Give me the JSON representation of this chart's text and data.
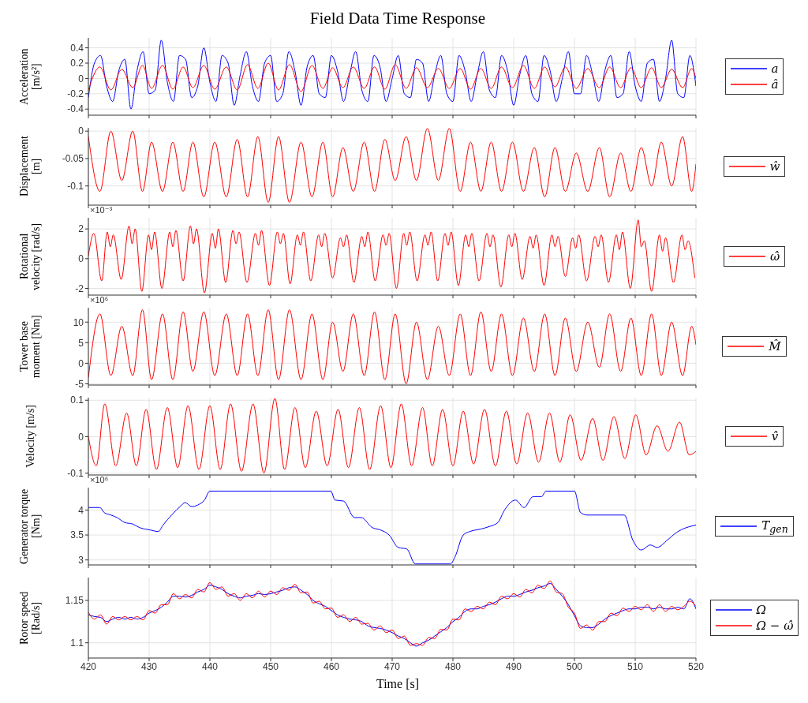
{
  "chart_data": [
    {
      "type": "line",
      "title": "Field Data Time Response",
      "ylabel": "Acceleration [m/s²]",
      "xlim": [
        420,
        520
      ],
      "xticks": [
        420,
        430,
        440,
        450,
        460,
        470,
        480,
        490,
        500,
        510,
        520
      ],
      "ylim": [
        -0.48,
        0.53
      ],
      "yticks": [
        -0.4,
        -0.2,
        0,
        0.2,
        0.4
      ],
      "grid": true,
      "legend": "right",
      "tick_labels": "y",
      "series": [
        {
          "name": "a",
          "color": "#0000ff",
          "x": [
            420,
            421,
            422,
            423,
            424,
            425,
            426,
            427,
            428,
            429,
            430,
            431,
            432,
            433,
            434,
            435,
            436,
            437,
            438,
            439,
            440,
            441,
            442,
            443,
            444,
            445,
            446,
            447,
            448,
            449,
            450,
            451,
            452,
            453,
            454,
            455,
            456,
            457,
            458,
            459,
            460,
            461,
            462,
            463,
            464,
            465,
            466,
            467,
            468,
            469,
            470,
            471,
            472,
            473,
            474,
            475,
            476,
            477,
            478,
            479,
            480,
            481,
            482,
            483,
            484,
            485,
            486,
            487,
            488,
            489,
            490,
            491,
            492,
            493,
            494,
            495,
            496,
            497,
            498,
            499,
            500,
            501,
            502,
            503,
            504,
            505,
            506,
            507,
            508,
            509,
            510,
            511,
            512,
            513,
            514,
            515,
            516,
            517,
            518,
            519,
            520
          ],
          "values": [
            -0.25,
            0.2,
            0.3,
            -0.1,
            -0.3,
            0.1,
            0.25,
            -0.4,
            0.1,
            0.35,
            -0.2,
            -0.15,
            0.5,
            -0.05,
            -0.3,
            0.3,
            0.25,
            -0.25,
            -0.1,
            0.4,
            -0.05,
            -0.3,
            0.3,
            0.2,
            -0.35,
            0.05,
            0.35,
            -0.1,
            -0.3,
            0.2,
            0.3,
            -0.3,
            -0.2,
            0.35,
            0.1,
            -0.35,
            0.15,
            0.3,
            -0.2,
            -0.25,
            0.3,
            0.1,
            -0.3,
            0.05,
            0.35,
            -0.15,
            -0.3,
            0.3,
            0.15,
            -0.3,
            0.0,
            0.3,
            -0.2,
            -0.25,
            0.25,
            0.2,
            -0.3,
            0.05,
            0.3,
            -0.2,
            -0.3,
            0.3,
            0.1,
            -0.3,
            0.05,
            0.35,
            -0.15,
            -0.25,
            0.3,
            0.1,
            -0.35,
            0.05,
            0.3,
            -0.2,
            -0.3,
            0.3,
            0.1,
            -0.3,
            0.0,
            0.35,
            -0.2,
            -0.2,
            0.3,
            0.05,
            -0.3,
            0.1,
            0.3,
            -0.25,
            -0.2,
            0.35,
            -0.1,
            -0.3,
            0.2,
            0.25,
            -0.3,
            0.0,
            0.5,
            -0.2,
            -0.25,
            0.3,
            -0.1
          ]
        },
        {
          "name": "â",
          "color": "#ff0000",
          "x": [
            420,
            421.9,
            423.7,
            425.5,
            427.3,
            428.9,
            430.4,
            432.2,
            433.9,
            435.6,
            437.2,
            439.0,
            440.8,
            442.7,
            444.5,
            446.2,
            447.9,
            449.6,
            451.3,
            453.1,
            455.0,
            456.8,
            458.6,
            460.2,
            461.9,
            463.6,
            465.4,
            467.1,
            468.8,
            470.5,
            472.3,
            474.0,
            475.8,
            477.6,
            479.4,
            481.2,
            482.9,
            484.6,
            486.3,
            488.0,
            489.8,
            491.6,
            493.4,
            495.1,
            496.8,
            498.5,
            500.3,
            502.2,
            504.1,
            505.8,
            507.6,
            509.3,
            511.0,
            512.7,
            514.3,
            516.0,
            517.8,
            519.3,
            520
          ],
          "values": [
            -0.15,
            0.15,
            -0.15,
            0.12,
            -0.12,
            0.17,
            -0.13,
            0.17,
            -0.14,
            0.15,
            -0.12,
            0.17,
            -0.14,
            0.15,
            -0.15,
            0.18,
            -0.13,
            0.2,
            -0.15,
            0.18,
            -0.17,
            0.17,
            -0.13,
            0.14,
            -0.12,
            0.15,
            -0.13,
            0.15,
            -0.14,
            0.18,
            -0.13,
            0.14,
            -0.12,
            0.13,
            -0.13,
            0.13,
            -0.14,
            0.13,
            -0.13,
            0.15,
            -0.12,
            0.17,
            -0.13,
            0.15,
            -0.11,
            0.15,
            -0.13,
            0.13,
            -0.12,
            0.15,
            -0.12,
            0.14,
            -0.12,
            0.14,
            -0.12,
            0.12,
            -0.12,
            0.13,
            0
          ]
        }
      ]
    },
    {
      "type": "line",
      "ylabel": "Displacement [m]",
      "xlim": [
        420,
        520
      ],
      "xticks": [
        420,
        430,
        440,
        450,
        460,
        470,
        480,
        490,
        500,
        510,
        520
      ],
      "ylim": [
        -0.135,
        0.006
      ],
      "yticks": [
        -0.1,
        -0.05,
        0
      ],
      "grid": true,
      "legend": "right",
      "tick_labels": "y",
      "series": [
        {
          "name": "ŵ",
          "color": "#ff0000",
          "x": [
            420,
            421.9,
            423.7,
            425.5,
            427.3,
            428.9,
            430.4,
            432.2,
            433.9,
            435.6,
            437.2,
            439.0,
            440.8,
            442.7,
            444.5,
            446.2,
            447.9,
            449.6,
            451.3,
            453.1,
            455.0,
            456.8,
            458.6,
            460.2,
            461.9,
            463.6,
            465.4,
            467.1,
            468.8,
            470.5,
            472.3,
            474.0,
            475.8,
            477.6,
            479.4,
            481.2,
            482.9,
            484.6,
            486.3,
            488.0,
            489.8,
            491.6,
            493.4,
            495.1,
            496.8,
            498.5,
            500.3,
            502.2,
            504.1,
            505.8,
            507.6,
            509.3,
            511.0,
            512.7,
            514.3,
            516.0,
            517.8,
            519.3,
            520
          ],
          "values": [
            -0.01,
            -0.11,
            0,
            -0.09,
            0,
            -0.11,
            -0.02,
            -0.11,
            -0.02,
            -0.11,
            -0.02,
            -0.12,
            -0.02,
            -0.12,
            -0.015,
            -0.12,
            -0.01,
            -0.13,
            -0.01,
            -0.13,
            -0.02,
            -0.12,
            -0.02,
            -0.12,
            -0.03,
            -0.11,
            -0.02,
            -0.11,
            -0.015,
            -0.09,
            -0.01,
            -0.09,
            0.005,
            -0.09,
            0.005,
            -0.11,
            -0.02,
            -0.11,
            -0.02,
            -0.11,
            -0.02,
            -0.11,
            -0.03,
            -0.12,
            -0.03,
            -0.11,
            -0.04,
            -0.11,
            -0.03,
            -0.12,
            -0.04,
            -0.11,
            -0.03,
            -0.1,
            -0.02,
            -0.1,
            -0.01,
            -0.11,
            -0.06
          ]
        }
      ]
    },
    {
      "type": "line",
      "ylabel": "Rotational velocity [rad/s]",
      "annotations": [
        "×10⁻³"
      ],
      "xlim": [
        420,
        520
      ],
      "xticks": [
        420,
        430,
        440,
        450,
        460,
        470,
        480,
        490,
        500,
        510,
        520
      ],
      "ylim": [
        -2.45,
        2.75
      ],
      "yticks": [
        -2,
        0,
        2
      ],
      "grid": true,
      "legend": "right",
      "tick_labels": "y",
      "series": [
        {
          "name": "ω̂",
          "color": "#ff0000",
          "x": [
            420,
            420.9,
            422.2,
            423.1,
            423.6,
            424.1,
            425.4,
            426.7,
            427.2,
            427.7,
            428.8,
            429.9,
            430.4,
            430.9,
            432.1,
            433.4,
            433.9,
            434.4,
            435.6,
            436.8,
            437.3,
            437.8,
            439.1,
            440.4,
            440.9,
            441.4,
            442.6,
            443.8,
            444.3,
            444.8,
            446.1,
            447.5,
            448.0,
            448.5,
            449.8,
            451.1,
            451.6,
            452.1,
            453.2,
            454.4,
            454.9,
            455.4,
            456.6,
            457.9,
            458.4,
            458.9,
            460.2,
            461.5,
            462.0,
            462.5,
            463.7,
            465.0,
            465.5,
            466.0,
            467.2,
            468.5,
            469.0,
            469.5,
            470.7,
            471.9,
            472.4,
            472.9,
            474.1,
            475.4,
            475.9,
            476.4,
            477.5,
            478.7,
            479.2,
            479.7,
            480.9,
            482.1,
            482.6,
            483.1,
            484.3,
            485.6,
            486.1,
            486.6,
            487.9,
            489.2,
            489.7,
            490.2,
            491.4,
            492.7,
            493.2,
            493.7,
            495.0,
            496.3,
            496.8,
            497.3,
            498.5,
            499.7,
            500.2,
            500.7,
            502.0,
            503.4,
            503.9,
            504.4,
            505.6,
            506.9,
            507.4,
            507.9,
            509.2,
            510.5,
            511.0,
            511.5,
            512.7,
            514.0,
            514.5,
            515.0,
            516.3,
            517.7,
            518.2,
            518.7,
            519.8
          ],
          "values": [
            0.2,
            1.7,
            -1.5,
            1.8,
            0.8,
            1.6,
            -1.4,
            2.2,
            1.0,
            2.0,
            -2.2,
            1.6,
            0.6,
            1.8,
            -2.0,
            1.8,
            0.8,
            1.9,
            -1.5,
            2.2,
            1.0,
            2.0,
            -2.3,
            1.7,
            0.7,
            2.0,
            -1.6,
            1.9,
            1.0,
            1.8,
            -1.6,
            1.7,
            0.9,
            1.9,
            -1.8,
            1.8,
            1.0,
            1.7,
            -1.7,
            1.6,
            0.9,
            1.8,
            -1.5,
            1.6,
            0.8,
            1.7,
            -1.3,
            1.4,
            0.8,
            1.6,
            -1.6,
            1.5,
            0.8,
            1.8,
            -1.5,
            1.6,
            0.9,
            1.7,
            -2.0,
            1.7,
            0.9,
            1.8,
            -1.5,
            1.6,
            0.9,
            1.8,
            -1.5,
            1.7,
            0.9,
            1.8,
            -1.8,
            1.6,
            0.8,
            1.7,
            -1.5,
            1.7,
            0.8,
            1.6,
            -1.9,
            1.6,
            0.8,
            1.7,
            -1.4,
            1.5,
            0.7,
            1.6,
            -1.8,
            1.6,
            0.8,
            1.5,
            -1.2,
            1.4,
            0.7,
            1.6,
            -1.5,
            1.5,
            0.8,
            1.6,
            -1.6,
            1.6,
            0.6,
            1.8,
            -2.0,
            2.6,
            0.8,
            1.2,
            -2.2,
            1.6,
            0.5,
            1.4,
            -1.6,
            1.6,
            0.6,
            1.2,
            -1.3
          ]
        }
      ]
    },
    {
      "type": "line",
      "ylabel": "Tower base moment [Nm]",
      "annotations": [
        "×10⁶"
      ],
      "xlim": [
        420,
        520
      ],
      "xticks": [
        420,
        430,
        440,
        450,
        460,
        470,
        480,
        490,
        500,
        510,
        520
      ],
      "ylim": [
        -5.3,
        13.5
      ],
      "yticks": [
        -5,
        0,
        5,
        10
      ],
      "grid": true,
      "legend": "right",
      "tick_labels": "y",
      "series": [
        {
          "name": "M̂",
          "color": "#ff0000",
          "x": [
            420,
            421.9,
            423.7,
            425.5,
            427.3,
            428.9,
            430.4,
            432.2,
            433.9,
            435.6,
            437.2,
            439.0,
            440.8,
            442.7,
            444.5,
            446.2,
            447.9,
            449.6,
            451.3,
            453.1,
            455.0,
            456.8,
            458.6,
            460.2,
            461.9,
            463.6,
            465.4,
            467.1,
            468.8,
            470.5,
            472.3,
            474.0,
            475.8,
            477.6,
            479.4,
            481.2,
            482.9,
            484.6,
            486.3,
            488.0,
            489.8,
            491.6,
            493.4,
            495.1,
            496.8,
            498.5,
            500.3,
            502.2,
            504.1,
            505.8,
            507.6,
            509.3,
            511.0,
            512.7,
            514.3,
            516.0,
            517.8,
            519.3,
            520
          ],
          "values": [
            -3.5,
            12,
            -3,
            9,
            -3,
            13,
            -4,
            12,
            -4,
            12.5,
            -2,
            12.5,
            -3,
            12,
            -3,
            12,
            -3,
            13,
            -4,
            13,
            -4,
            12,
            -4,
            10,
            -2,
            12,
            -3,
            12.5,
            -4,
            12,
            -5,
            10,
            -4,
            9,
            -3,
            12,
            -3,
            12.5,
            -2,
            12,
            -3,
            11,
            -2,
            12,
            -3,
            11,
            -2,
            10,
            -1,
            12,
            -2,
            11,
            -3,
            12,
            -3,
            10,
            -3,
            9,
            4.5
          ]
        }
      ]
    },
    {
      "type": "line",
      "ylabel": "Velocity [m/s]",
      "xlim": [
        420,
        520
      ],
      "xticks": [
        420,
        430,
        440,
        450,
        460,
        470,
        480,
        490,
        500,
        510,
        520
      ],
      "ylim": [
        -0.105,
        0.107
      ],
      "yticks": [
        -0.1,
        0,
        0.1
      ],
      "grid": true,
      "legend": "right",
      "tick_labels": "y",
      "series": [
        {
          "name": "v̂",
          "color": "#ff0000",
          "x": [
            420,
            421.3,
            422.7,
            424.5,
            426.3,
            427.9,
            429.5,
            431.2,
            433.0,
            434.7,
            436.4,
            438.2,
            440.0,
            441.7,
            443.4,
            445.2,
            447.1,
            448.9,
            450.7,
            452.3,
            454.0,
            455.7,
            457.5,
            459.3,
            461.1,
            462.8,
            464.6,
            466.3,
            468.1,
            469.8,
            471.5,
            473.2,
            475.0,
            476.6,
            478.3,
            480.0,
            481.7,
            483.4,
            485.2,
            487.0,
            488.8,
            490.5,
            492.3,
            494.1,
            495.9,
            497.6,
            499.3,
            501.1,
            503.0,
            504.7,
            506.5,
            508.3,
            510.1,
            511.8,
            513.6,
            515.4,
            517.3,
            518.9,
            520
          ],
          "values": [
            0,
            -0.08,
            0.09,
            -0.08,
            0.065,
            -0.08,
            0.075,
            -0.09,
            0.08,
            -0.085,
            0.085,
            -0.09,
            0.085,
            -0.09,
            0.09,
            -0.095,
            0.09,
            -0.1,
            0.105,
            -0.09,
            0.08,
            -0.085,
            0.07,
            -0.08,
            0.075,
            -0.085,
            0.08,
            -0.09,
            0.085,
            -0.085,
            0.09,
            -0.08,
            0.08,
            -0.08,
            0.075,
            -0.08,
            0.07,
            -0.075,
            0.075,
            -0.08,
            0.07,
            -0.075,
            0.065,
            -0.07,
            0.065,
            -0.07,
            0.06,
            -0.065,
            0.05,
            -0.065,
            0.055,
            -0.06,
            0.06,
            -0.05,
            0.03,
            -0.04,
            0.04,
            -0.05,
            -0.04
          ]
        }
      ]
    },
    {
      "type": "line",
      "ylabel": "Generator torque [Nm]",
      "annotations": [
        "×10⁶"
      ],
      "xlim": [
        420,
        520
      ],
      "xticks": [
        420,
        430,
        440,
        450,
        460,
        470,
        480,
        490,
        500,
        510,
        520
      ],
      "ylim": [
        2.9,
        4.45
      ],
      "yticks": [
        3,
        3.5,
        4
      ],
      "grid": true,
      "legend": "right",
      "tick_labels": "y",
      "series": [
        {
          "name": "T$_{gen}$",
          "color": "#0000ff",
          "x": [
            420,
            421.9,
            422.6,
            423.7,
            424.7,
            426.0,
            427.3,
            428.4,
            430.2,
            431.5,
            432.3,
            433.7,
            435.2,
            435.9,
            437.0,
            438.0,
            439.1,
            440.0,
            459.9,
            460.6,
            462.0,
            463.8,
            464.9,
            466.7,
            468.1,
            469.5,
            471.0,
            472.4,
            473.8,
            479.6,
            480.3,
            481.7,
            482.8,
            484.6,
            486.0,
            487.4,
            488.5,
            490.3,
            491.7,
            493.2,
            494.6,
            495.3,
            500.0,
            501.0,
            502.1,
            508.2,
            509.6,
            511.0,
            512.5,
            513.6,
            515.3,
            516.8,
            520
          ],
          "values": [
            4.05,
            4.05,
            3.95,
            3.9,
            3.85,
            3.75,
            3.72,
            3.65,
            3.6,
            3.57,
            3.7,
            3.9,
            4.08,
            4.15,
            4.07,
            4.1,
            4.2,
            4.38,
            4.38,
            4.2,
            4.18,
            3.85,
            3.85,
            3.65,
            3.6,
            3.5,
            3.25,
            3.22,
            2.92,
            2.92,
            3.05,
            3.5,
            3.57,
            3.62,
            3.67,
            3.75,
            4.0,
            4.2,
            4.05,
            4.27,
            4.27,
            4.38,
            4.38,
            3.95,
            3.9,
            3.9,
            3.4,
            3.2,
            3.3,
            3.25,
            3.4,
            3.55,
            3.7
          ]
        }
      ]
    },
    {
      "type": "line",
      "ylabel": "Rotor speed [Rad/s]",
      "xlabel": "Time [s]",
      "xlim": [
        420,
        520
      ],
      "xticks": [
        420,
        430,
        440,
        450,
        460,
        470,
        480,
        490,
        500,
        510,
        520
      ],
      "ylim": [
        1.082,
        1.177
      ],
      "yticks": [
        1.1,
        1.15
      ],
      "grid": true,
      "legend": "right",
      "x": [
        420,
        421,
        422,
        423,
        424,
        425,
        426,
        427,
        428,
        429,
        430,
        431,
        432,
        433,
        434,
        435,
        436,
        437,
        438,
        439,
        440,
        441,
        442,
        443,
        444,
        445,
        446,
        447,
        448,
        449,
        450,
        451,
        452,
        453,
        454,
        455,
        456,
        457,
        458,
        459,
        460,
        461,
        462,
        463,
        464,
        465,
        466,
        467,
        468,
        469,
        470,
        471,
        472,
        473,
        474,
        475,
        476,
        477,
        478,
        479,
        480,
        481,
        482,
        483,
        484,
        485,
        486,
        487,
        488,
        489,
        490,
        491,
        492,
        493,
        494,
        495,
        496,
        497,
        498,
        499,
        500,
        501,
        502,
        503,
        504,
        505,
        506,
        507,
        508,
        509,
        510,
        511,
        512,
        513,
        514,
        515,
        516,
        517,
        518,
        519,
        520
      ],
      "series": [
        {
          "name": "Ω",
          "color": "#0000ff",
          "values": [
            1.133,
            1.131,
            1.13,
            1.125,
            1.128,
            1.13,
            1.128,
            1.13,
            1.128,
            1.13,
            1.135,
            1.138,
            1.142,
            1.148,
            1.155,
            1.155,
            1.154,
            1.156,
            1.16,
            1.163,
            1.168,
            1.166,
            1.163,
            1.158,
            1.155,
            1.153,
            1.155,
            1.156,
            1.158,
            1.157,
            1.158,
            1.16,
            1.162,
            1.165,
            1.166,
            1.162,
            1.157,
            1.15,
            1.146,
            1.143,
            1.138,
            1.133,
            1.13,
            1.128,
            1.127,
            1.125,
            1.12,
            1.118,
            1.117,
            1.115,
            1.112,
            1.108,
            1.105,
            1.1,
            1.096,
            1.1,
            1.103,
            1.108,
            1.113,
            1.118,
            1.125,
            1.13,
            1.137,
            1.14,
            1.14,
            1.143,
            1.145,
            1.148,
            1.152,
            1.155,
            1.155,
            1.157,
            1.16,
            1.162,
            1.165,
            1.167,
            1.17,
            1.163,
            1.155,
            1.145,
            1.132,
            1.12,
            1.118,
            1.118,
            1.122,
            1.128,
            1.132,
            1.135,
            1.138,
            1.14,
            1.14,
            1.142,
            1.142,
            1.14,
            1.142,
            1.14,
            1.14,
            1.142,
            1.14,
            1.152,
            1.14
          ]
        },
        {
          "name": "Ω − ω̂",
          "color": "#ff0000",
          "values": [
            1.136,
            1.128,
            1.133,
            1.122,
            1.131,
            1.127,
            1.131,
            1.127,
            1.131,
            1.127,
            1.138,
            1.135,
            1.145,
            1.145,
            1.158,
            1.152,
            1.157,
            1.153,
            1.163,
            1.16,
            1.171,
            1.163,
            1.166,
            1.155,
            1.158,
            1.15,
            1.158,
            1.153,
            1.161,
            1.154,
            1.161,
            1.157,
            1.165,
            1.162,
            1.169,
            1.159,
            1.16,
            1.147,
            1.149,
            1.14,
            1.141,
            1.13,
            1.133,
            1.125,
            1.13,
            1.122,
            1.123,
            1.115,
            1.12,
            1.112,
            1.115,
            1.105,
            1.108,
            1.097,
            1.099,
            1.097,
            1.106,
            1.105,
            1.116,
            1.115,
            1.128,
            1.127,
            1.14,
            1.137,
            1.143,
            1.14,
            1.148,
            1.145,
            1.155,
            1.152,
            1.158,
            1.154,
            1.163,
            1.159,
            1.168,
            1.164,
            1.173,
            1.16,
            1.158,
            1.142,
            1.135,
            1.117,
            1.121,
            1.115,
            1.125,
            1.125,
            1.135,
            1.132,
            1.141,
            1.137,
            1.143,
            1.139,
            1.145,
            1.137,
            1.145,
            1.137,
            1.143,
            1.139,
            1.143,
            1.149,
            1.143
          ]
        }
      ]
    }
  ]
}
